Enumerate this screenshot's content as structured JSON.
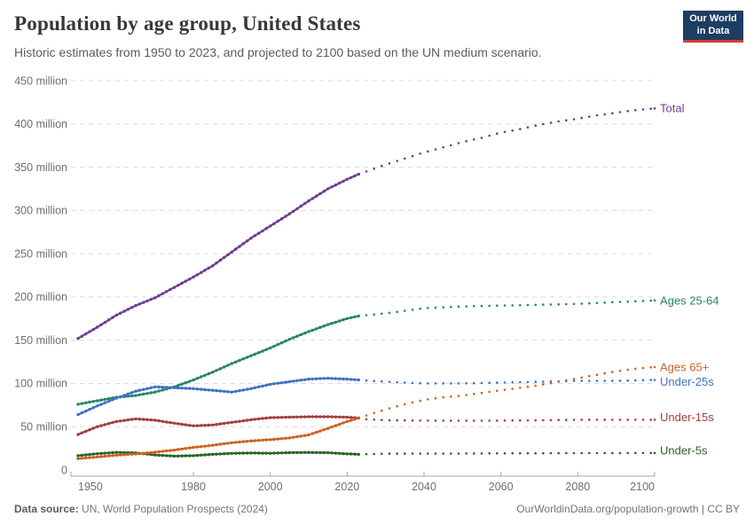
{
  "header": {
    "title": "Population by age group, United States",
    "subtitle": "Historic estimates from 1950 to 2023, and projected to 2100 based on the UN medium scenario.",
    "title_color": "#383838",
    "subtitle_color": "#5b5b5b",
    "logo": {
      "line1": "Our World",
      "line2": "in Data",
      "bg_color": "#1d3d63",
      "accent_color": "#d73c34"
    }
  },
  "footer": {
    "source_label": "Data source:",
    "source_rest": " UN, World Population Prospects (2024)",
    "credit": "OurWorldinData.org/population-growth | CC BY",
    "text_color": "#757575",
    "label_color": "#5b5b5b"
  },
  "chart_data": {
    "type": "line",
    "title": "Population by age group, United States",
    "xlabel": "",
    "ylabel": "",
    "unit": "million people",
    "x_range": [
      1950,
      2100
    ],
    "y_range": [
      0,
      450
    ],
    "x_ticks": [
      1950,
      1980,
      2000,
      2020,
      2040,
      2060,
      2080,
      2100
    ],
    "y_ticks": [
      0,
      50,
      100,
      150,
      200,
      250,
      300,
      350,
      400,
      450
    ],
    "y_tick_suffix": " million",
    "grid": true,
    "grid_color": "#dcdcdc",
    "axis_color": "#a6a6a6",
    "tick_text_color": "#6e6e6e",
    "legend_position": "labels-at-line-ends",
    "historic_until": 2023,
    "projection_style": "dotted",
    "series": [
      {
        "name": "Total",
        "color": "#6d3e91",
        "label_dy": 0,
        "historic": [
          [
            1950,
            152
          ],
          [
            1955,
            165
          ],
          [
            1960,
            179
          ],
          [
            1965,
            190
          ],
          [
            1970,
            199
          ],
          [
            1975,
            211
          ],
          [
            1980,
            223
          ],
          [
            1985,
            236
          ],
          [
            1990,
            252
          ],
          [
            1995,
            268
          ],
          [
            2000,
            282
          ],
          [
            2005,
            296
          ],
          [
            2010,
            311
          ],
          [
            2015,
            325
          ],
          [
            2020,
            336
          ],
          [
            2023,
            342
          ]
        ],
        "projected": [
          [
            2023,
            342
          ],
          [
            2025,
            345
          ],
          [
            2030,
            353
          ],
          [
            2035,
            360
          ],
          [
            2040,
            367
          ],
          [
            2045,
            373
          ],
          [
            2050,
            379
          ],
          [
            2055,
            384
          ],
          [
            2060,
            390
          ],
          [
            2065,
            394
          ],
          [
            2070,
            399
          ],
          [
            2075,
            403
          ],
          [
            2080,
            406
          ],
          [
            2085,
            410
          ],
          [
            2090,
            413
          ],
          [
            2095,
            416
          ],
          [
            2100,
            418
          ]
        ]
      },
      {
        "name": "Ages 25-64",
        "color": "#2c8465",
        "label_dy": 0,
        "historic": [
          [
            1950,
            76
          ],
          [
            1955,
            80
          ],
          [
            1960,
            84
          ],
          [
            1965,
            86
          ],
          [
            1970,
            90
          ],
          [
            1975,
            96
          ],
          [
            1980,
            104
          ],
          [
            1985,
            113
          ],
          [
            1990,
            123
          ],
          [
            1995,
            132
          ],
          [
            2000,
            141
          ],
          [
            2005,
            151
          ],
          [
            2010,
            160
          ],
          [
            2015,
            168
          ],
          [
            2020,
            175
          ],
          [
            2023,
            178
          ]
        ],
        "projected": [
          [
            2023,
            178
          ],
          [
            2030,
            181
          ],
          [
            2035,
            184
          ],
          [
            2040,
            187
          ],
          [
            2045,
            188
          ],
          [
            2050,
            189
          ],
          [
            2060,
            190
          ],
          [
            2070,
            191
          ],
          [
            2080,
            192
          ],
          [
            2090,
            194
          ],
          [
            2100,
            196
          ]
        ]
      },
      {
        "name": "Under-25s",
        "color": "#3d73c4",
        "label_dy": 2,
        "historic": [
          [
            1950,
            64
          ],
          [
            1955,
            74
          ],
          [
            1960,
            83
          ],
          [
            1965,
            91
          ],
          [
            1970,
            96
          ],
          [
            1975,
            95
          ],
          [
            1980,
            94
          ],
          [
            1985,
            92
          ],
          [
            1990,
            90
          ],
          [
            1995,
            94
          ],
          [
            2000,
            99
          ],
          [
            2005,
            102
          ],
          [
            2010,
            105
          ],
          [
            2015,
            106
          ],
          [
            2020,
            105
          ],
          [
            2023,
            104
          ]
        ],
        "projected": [
          [
            2023,
            104
          ],
          [
            2030,
            102
          ],
          [
            2040,
            100
          ],
          [
            2050,
            100
          ],
          [
            2060,
            101
          ],
          [
            2070,
            102
          ],
          [
            2080,
            103
          ],
          [
            2090,
            103
          ],
          [
            2100,
            104
          ]
        ]
      },
      {
        "name": "Under-15s",
        "color": "#a2403a",
        "label_dy": -3,
        "historic": [
          [
            1950,
            41
          ],
          [
            1955,
            50
          ],
          [
            1960,
            56
          ],
          [
            1965,
            59
          ],
          [
            1970,
            57.5
          ],
          [
            1975,
            54
          ],
          [
            1980,
            51
          ],
          [
            1985,
            52
          ],
          [
            1990,
            55
          ],
          [
            1995,
            58
          ],
          [
            2000,
            60.5
          ],
          [
            2005,
            61
          ],
          [
            2010,
            61.5
          ],
          [
            2015,
            61.5
          ],
          [
            2020,
            61
          ],
          [
            2023,
            60
          ]
        ],
        "projected": [
          [
            2023,
            60
          ],
          [
            2025,
            58.5
          ],
          [
            2030,
            57.5
          ],
          [
            2040,
            57
          ],
          [
            2050,
            57
          ],
          [
            2060,
            57
          ],
          [
            2070,
            57.5
          ],
          [
            2080,
            58
          ],
          [
            2090,
            58
          ],
          [
            2100,
            58
          ]
        ]
      },
      {
        "name": "Under-5s",
        "color": "#2a6425",
        "label_dy": -3,
        "historic": [
          [
            1950,
            16.5
          ],
          [
            1955,
            18.8
          ],
          [
            1960,
            20.3
          ],
          [
            1965,
            19.8
          ],
          [
            1970,
            17.3
          ],
          [
            1975,
            16
          ],
          [
            1980,
            16.5
          ],
          [
            1985,
            18
          ],
          [
            1990,
            19.2
          ],
          [
            1995,
            19.6
          ],
          [
            2000,
            19.3
          ],
          [
            2005,
            20
          ],
          [
            2010,
            20.2
          ],
          [
            2015,
            19.9
          ],
          [
            2020,
            18.6
          ],
          [
            2023,
            18
          ]
        ],
        "projected": [
          [
            2023,
            18
          ],
          [
            2030,
            18.8
          ],
          [
            2040,
            19
          ],
          [
            2050,
            19
          ],
          [
            2060,
            19.2
          ],
          [
            2070,
            19.3
          ],
          [
            2080,
            19.5
          ],
          [
            2090,
            19.5
          ],
          [
            2100,
            19.6
          ]
        ]
      },
      {
        "name": "Ages 65+",
        "color": "#ce6222",
        "label_dy": 0,
        "historic": [
          [
            1950,
            13
          ],
          [
            1955,
            15
          ],
          [
            1960,
            17
          ],
          [
            1965,
            18.5
          ],
          [
            1970,
            20.5
          ],
          [
            1975,
            23
          ],
          [
            1980,
            26
          ],
          [
            1985,
            28.5
          ],
          [
            1990,
            31.5
          ],
          [
            1995,
            33.5
          ],
          [
            2000,
            35
          ],
          [
            2005,
            37
          ],
          [
            2010,
            40.5
          ],
          [
            2015,
            48
          ],
          [
            2020,
            56
          ],
          [
            2023,
            60
          ]
        ],
        "projected": [
          [
            2023,
            60
          ],
          [
            2025,
            63
          ],
          [
            2030,
            70
          ],
          [
            2035,
            76
          ],
          [
            2040,
            81
          ],
          [
            2045,
            84
          ],
          [
            2050,
            86
          ],
          [
            2055,
            89
          ],
          [
            2060,
            92
          ],
          [
            2065,
            95
          ],
          [
            2070,
            98
          ],
          [
            2075,
            102
          ],
          [
            2080,
            106
          ],
          [
            2085,
            110
          ],
          [
            2090,
            114
          ],
          [
            2095,
            117
          ],
          [
            2100,
            119
          ]
        ]
      }
    ]
  }
}
